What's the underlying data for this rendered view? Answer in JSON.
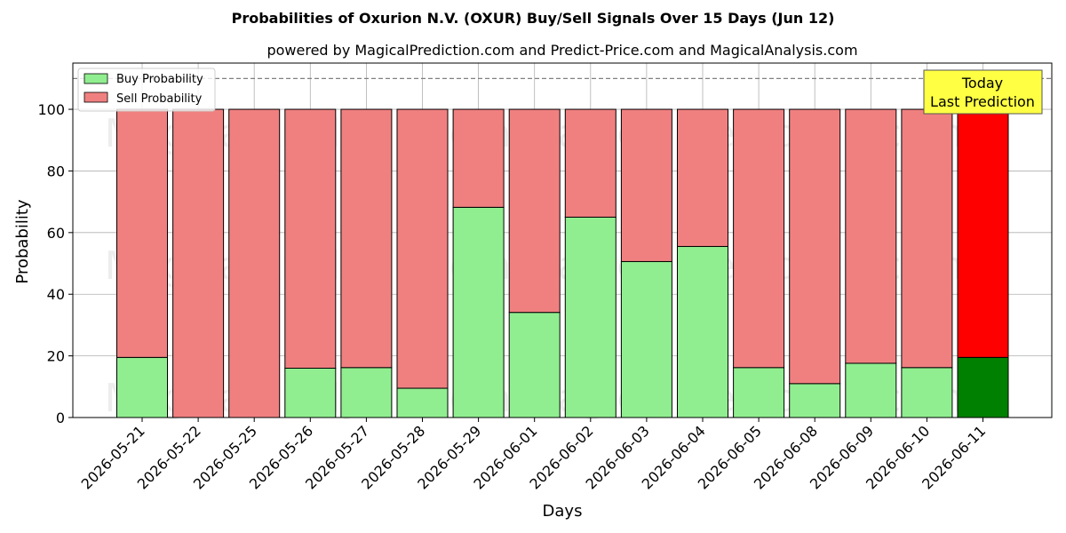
{
  "chart_data": {
    "type": "bar",
    "stacked": true,
    "title": "Probabilities of Oxurion N.V. (OXUR) Buy/Sell Signals Over 15 Days (Jun 12)",
    "subtitle": "powered by MagicalPrediction.com and Predict-Price.com and MagicalAnalysis.com",
    "xlabel": "Days",
    "ylabel": "Probability",
    "ylim": [
      0,
      115
    ],
    "yticks": [
      0,
      20,
      40,
      60,
      80,
      100
    ],
    "grid": true,
    "legend_position": "top-left",
    "reference_line": 110,
    "categories": [
      "2026-05-21",
      "2026-05-22",
      "2026-05-25",
      "2026-05-26",
      "2026-05-27",
      "2026-05-28",
      "2026-05-29",
      "2026-06-01",
      "2026-06-02",
      "2026-06-03",
      "2026-06-04",
      "2026-06-05",
      "2026-06-08",
      "2026-06-09",
      "2026-06-10",
      "2026-06-11"
    ],
    "series": [
      {
        "name": "Buy Probability",
        "color": "#90ee90",
        "today_color": "#008000",
        "values": [
          19.5,
          0,
          0,
          16,
          16.2,
          9.5,
          68.2,
          34.1,
          65,
          50.6,
          55.5,
          16.2,
          11,
          17.6,
          16.2,
          19.5
        ]
      },
      {
        "name": "Sell Probability",
        "color": "#f08080",
        "today_color": "#ff0000",
        "values": [
          80.5,
          100,
          100,
          84,
          83.8,
          90.5,
          31.8,
          65.9,
          35,
          49.4,
          44.5,
          83.8,
          89,
          82.4,
          83.8,
          80.5
        ]
      }
    ],
    "annotation": {
      "line1": "Today",
      "line2": "Last Prediction",
      "color": "#ffff44"
    },
    "watermark": "MagicalAnalysis.com   MagicalPrediction.com"
  }
}
